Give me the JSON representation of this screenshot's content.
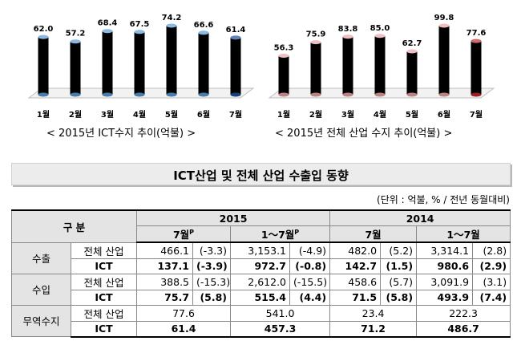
{
  "chart_data": [
    {
      "type": "bar",
      "categories": [
        "1월",
        "2월",
        "3월",
        "4월",
        "5월",
        "6월",
        "7월"
      ],
      "values": [
        62.0,
        57.2,
        68.4,
        67.5,
        74.2,
        66.6,
        61.4
      ],
      "labels": [
        "62.0",
        "57.2",
        "68.4",
        "67.5",
        "74.2",
        "66.6",
        "61.4"
      ],
      "title": "< 2015년 ICT수지 추이(억불) >",
      "colors": {
        "normal": "#5b9bd5",
        "highlight": "#1f4e9a"
      },
      "highlight_index": 6
    },
    {
      "type": "bar",
      "categories": [
        "1월",
        "2월",
        "3월",
        "4월",
        "5월",
        "6월",
        "7월"
      ],
      "values": [
        56.3,
        75.9,
        83.8,
        85.0,
        62.7,
        99.8,
        77.6
      ],
      "labels": [
        "56.3",
        "75.9",
        "83.8",
        "85.0",
        "62.7",
        "99.8",
        "77.6"
      ],
      "title": "< 2015년 전체 산업 수지 추이(억불) >",
      "colors": {
        "normal": "#e8a4a8",
        "highlight": "#c0282c"
      },
      "highlight_index": 6
    }
  ],
  "section_title": "ICT산업 및 전체 산업 수출입 동향",
  "unit_note": "(단위 : 억불, % / 전년 동월대비)",
  "table": {
    "h_gubun": "구    분",
    "y2015": "2015",
    "y2014": "2014",
    "m7": "7월",
    "m17": "1～7월",
    "p": "P",
    "g_export": "수출",
    "g_import": "수입",
    "g_trade": "무역수지",
    "all": "전체 산업",
    "ict": "ICT",
    "rows": {
      "ex_all": [
        "466.1",
        "(-3.3)",
        "3,153.1",
        "(-4.9)",
        "482.0",
        "(5.2)",
        "3,314.1",
        "(2.8)"
      ],
      "ex_ict": [
        "137.1",
        "(-3.9)",
        "972.7",
        "(-0.8)",
        "142.7",
        "(1.5)",
        "980.6",
        "(2.9)"
      ],
      "im_all": [
        "388.5",
        "(-15.3)",
        "2,612.0",
        "(-15.5)",
        "458.6",
        "(5.7)",
        "3,091.9",
        "(3.1)"
      ],
      "im_ict": [
        "75.7",
        "(5.8)",
        "515.4",
        "(4.4)",
        "71.5",
        "(5.8)",
        "493.9",
        "(7.4)"
      ],
      "tb_all": [
        "77.6",
        "541.0",
        "23.4",
        "222.3"
      ],
      "tb_ict": [
        "61.4",
        "457.3",
        "71.2",
        "486.7"
      ]
    }
  }
}
